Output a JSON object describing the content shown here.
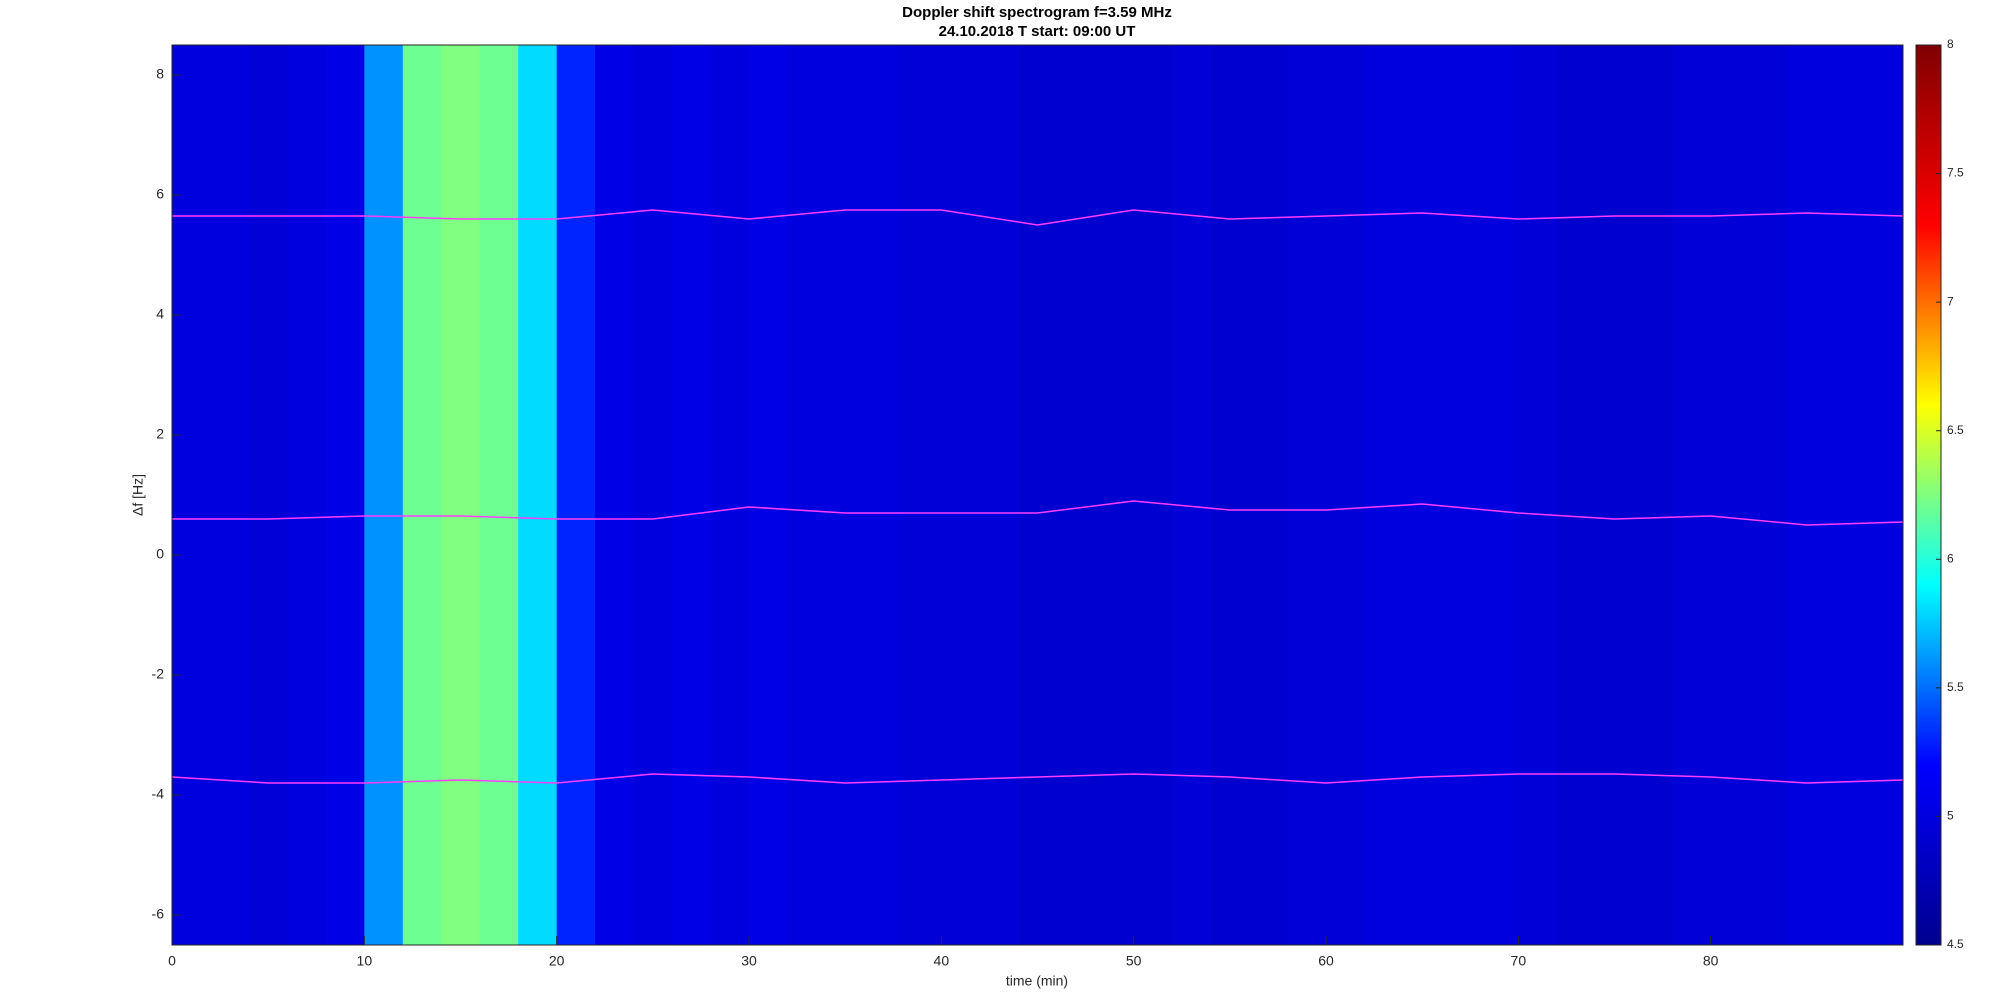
{
  "chart_data": {
    "type": "spectrogram",
    "title": "Doppler shift spectrogram f=3.59 MHz",
    "subtitle": "24.10.2018   T start: 09:00 UT",
    "x_label": "time (min)",
    "y_label": "Δf [Hz]",
    "xlim": [
      0,
      90
    ],
    "ylim": [
      -6.5,
      8.5
    ],
    "xticks": [
      0,
      10,
      20,
      30,
      40,
      50,
      60,
      70,
      80
    ],
    "yticks": [
      -6,
      -4,
      -2,
      0,
      2,
      4,
      6,
      8
    ],
    "colorbar_lim": [
      4.5,
      8
    ],
    "colorbar_ticks": [
      4.5,
      5,
      5.5,
      6,
      6.5,
      7,
      7.5,
      8
    ],
    "colormap": [
      "#00008f",
      "#0000ff",
      "#00ffff",
      "#ffff00",
      "#ff0000",
      "#800000"
    ],
    "background": {
      "bins": [
        0,
        2,
        4,
        6,
        8,
        10,
        12,
        14,
        16,
        18,
        20,
        22,
        24,
        26,
        28,
        30,
        32,
        34,
        36,
        38,
        40,
        42,
        44,
        46,
        48,
        50,
        52,
        54,
        56,
        58,
        60,
        62,
        64,
        66,
        68,
        70,
        72,
        74,
        76,
        78,
        80,
        82,
        84,
        86,
        88,
        90
      ],
      "values": [
        5.0,
        5.0,
        4.95,
        5.0,
        5.05,
        5.6,
        6.2,
        6.25,
        6.2,
        5.8,
        5.3,
        5.05,
        5.0,
        5.05,
        5.0,
        5.05,
        5.0,
        5.0,
        5.0,
        4.95,
        4.95,
        4.95,
        4.9,
        4.9,
        4.9,
        4.9,
        4.95,
        4.9,
        4.9,
        4.95,
        4.95,
        5.0,
        5.0,
        5.0,
        5.0,
        4.95,
        4.9,
        4.9,
        4.9,
        4.95,
        4.95,
        4.95,
        5.0,
        5.0,
        5.0
      ]
    },
    "trace_color": "#ff3cff",
    "x": [
      0,
      5,
      10,
      15,
      20,
      25,
      30,
      35,
      40,
      45,
      50,
      55,
      60,
      65,
      70,
      75,
      80,
      85,
      90
    ],
    "series": [
      {
        "values": [
          5.65,
          5.65,
          5.65,
          5.6,
          5.6,
          5.75,
          5.6,
          5.75,
          5.75,
          5.5,
          5.75,
          5.6,
          5.65,
          5.7,
          5.6,
          5.65,
          5.65,
          5.7,
          5.65
        ]
      },
      {
        "values": [
          0.6,
          0.6,
          0.65,
          0.65,
          0.6,
          0.6,
          0.8,
          0.7,
          0.7,
          0.7,
          0.9,
          0.75,
          0.75,
          0.85,
          0.7,
          0.6,
          0.65,
          0.5,
          0.55
        ]
      },
      {
        "values": [
          -3.7,
          -3.8,
          -3.8,
          -3.75,
          -3.8,
          -3.65,
          -3.7,
          -3.8,
          -3.75,
          -3.7,
          -3.65,
          -3.7,
          -3.8,
          -3.7,
          -3.65,
          -3.65,
          -3.7,
          -3.8,
          -3.75
        ]
      }
    ]
  }
}
